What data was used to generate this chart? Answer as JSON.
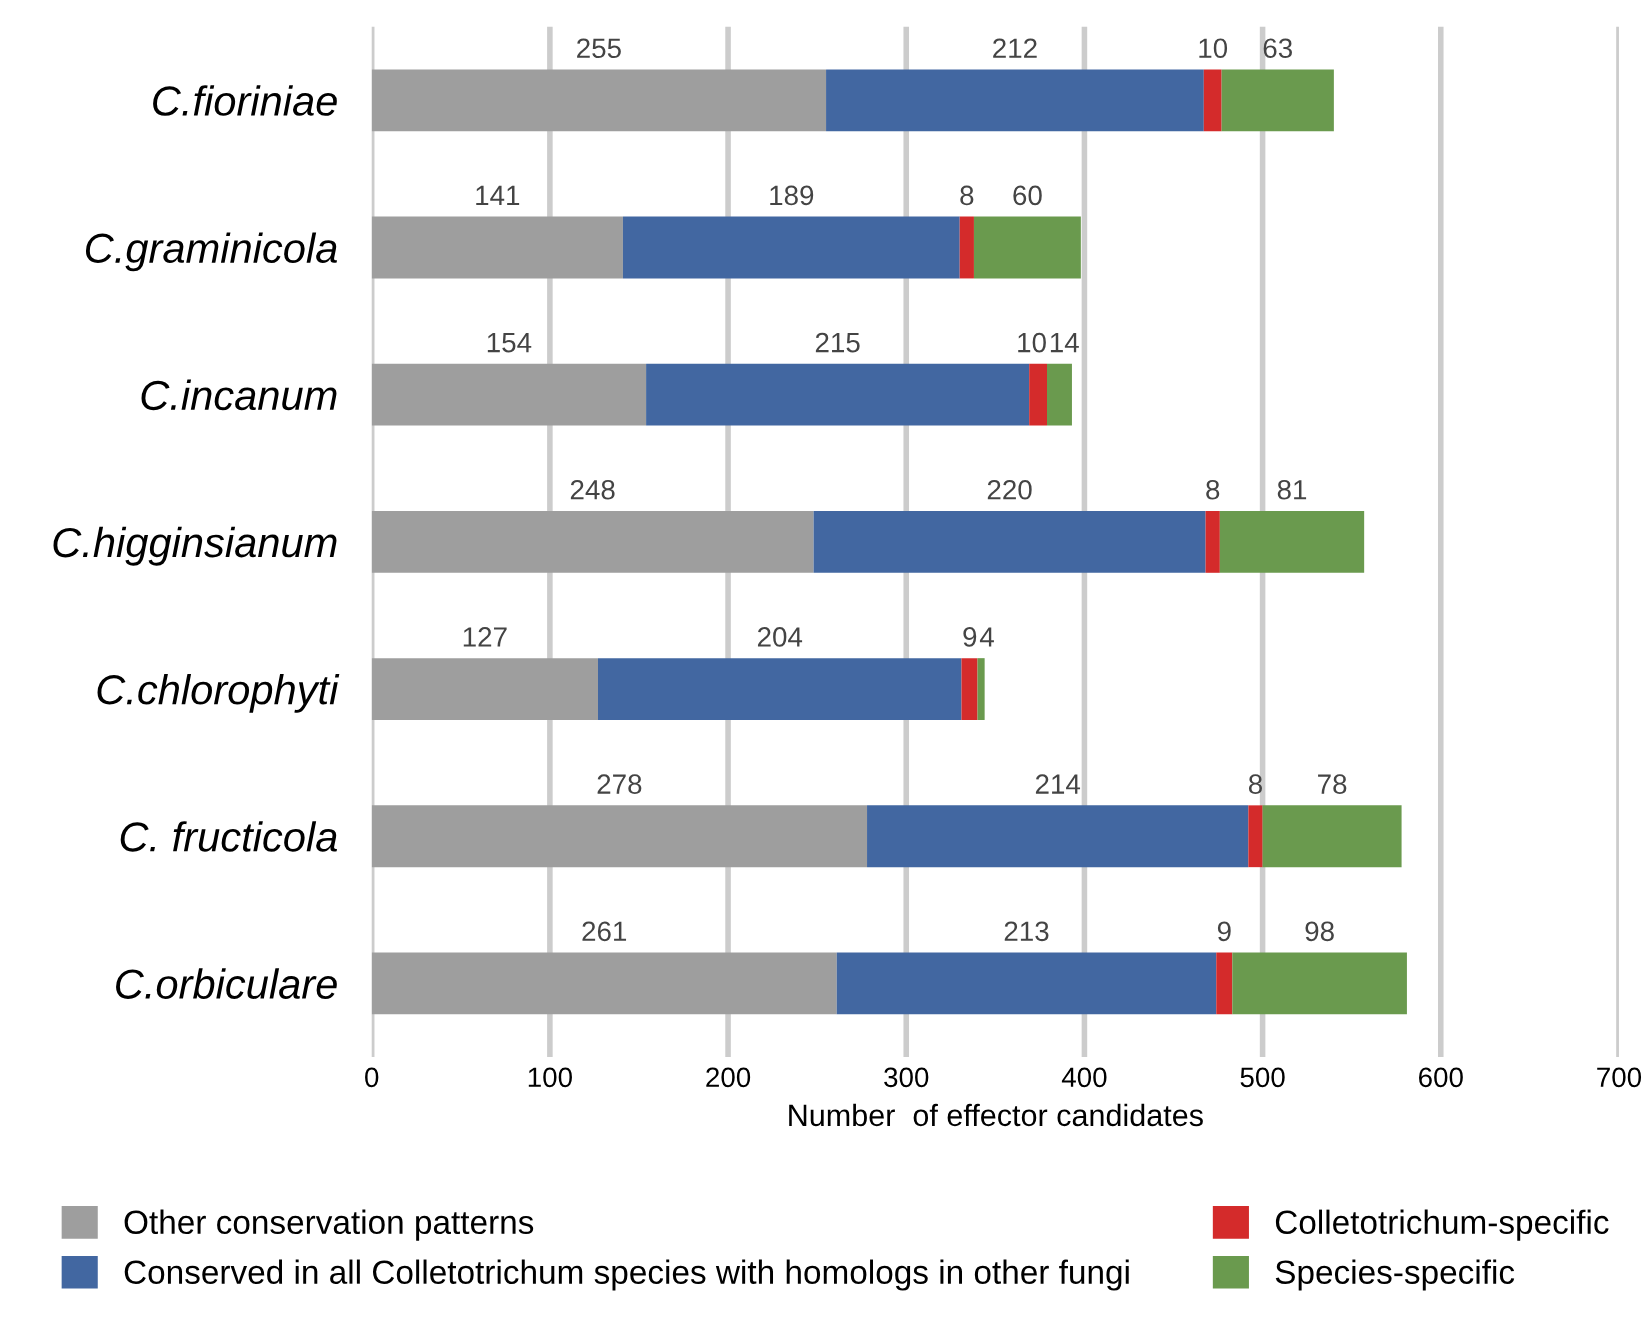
{
  "chart_data": {
    "type": "bar",
    "orientation": "horizontal",
    "stacked": true,
    "xlabel": "Number  of effector candidates",
    "categories": [
      "C.fioriniae",
      "C.graminicola",
      "C.incanum",
      "C.higginsianum",
      "C.chlorophyti",
      "C. fructicola",
      "C.orbiculare"
    ],
    "series": [
      {
        "name": "Other conservation patterns",
        "color": "#9e9e9e",
        "values": [
          255,
          141,
          154,
          248,
          127,
          278,
          261
        ]
      },
      {
        "name": "Conserved in all Colletotrichum species with homologs in other fungi",
        "color": "#4267a1",
        "values": [
          212,
          189,
          215,
          220,
          204,
          214,
          213
        ]
      },
      {
        "name": "Colletotrichum-specific",
        "color": "#d42b2b",
        "values": [
          10,
          8,
          10,
          8,
          9,
          8,
          9
        ]
      },
      {
        "name": "Species-specific",
        "color": "#6a9a4e",
        "values": [
          63,
          60,
          14,
          81,
          4,
          78,
          98
        ]
      }
    ],
    "xlim": [
      0,
      700
    ],
    "xticks": [
      0,
      100,
      200,
      300,
      400,
      500,
      600,
      700
    ],
    "grid": "x",
    "legend": "bottom",
    "data_labels": true
  }
}
